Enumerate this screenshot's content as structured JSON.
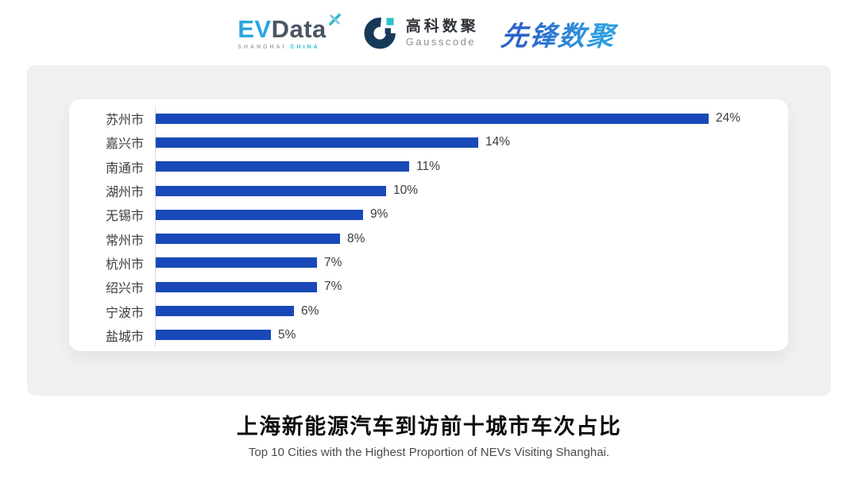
{
  "header": {
    "evdata_logo": {
      "ev": "EV",
      "data": "Data",
      "tagline_left": "SHANGHAI",
      "tagline_right": "CHINA"
    },
    "gausscode_logo": {
      "name_cn": "高科数聚",
      "name_en": "Gausscode"
    },
    "pioneer_logo": {
      "text": "先锋数聚"
    }
  },
  "chart_data": {
    "type": "bar",
    "orientation": "horizontal",
    "title": "上海新能源汽车到访前十城市车次占比",
    "subtitle": "Top 10 Cities with the Highest Proportion of  NEVs Visiting Shanghai.",
    "categories": [
      "苏州市",
      "嘉兴市",
      "南通市",
      "湖州市",
      "无锡市",
      "常州市",
      "杭州市",
      "绍兴市",
      "宁波市",
      "盐城市"
    ],
    "values": [
      24,
      14,
      11,
      10,
      9,
      8,
      7,
      7,
      6,
      5
    ],
    "value_labels": [
      "24%",
      "14%",
      "11%",
      "10%",
      "9%",
      "8%",
      "7%",
      "7%",
      "6%",
      "5%"
    ],
    "xlim": [
      0,
      24
    ],
    "grid": false,
    "legend": "none",
    "bar_color": "#1949b8",
    "axis_line_color": "#dbdbdb",
    "label_color": "#3c3c3c"
  },
  "colors": {
    "page_bg": "#ffffff",
    "panel_bg": "#f0f0f1",
    "card_bg": "#ffffff",
    "accent_blue": "#1949b8",
    "evdata_blue": "#2aa7dd",
    "evdata_dark": "#4a5662",
    "tagline_gray": "#a3a8ae",
    "tagline_cyan": "#29c3dc",
    "gauss_navy": "#16395a",
    "gauss_teal": "#2fbfca",
    "pioneer_blue_start": "#2a63c9",
    "pioneer_blue_end": "#2f9de0"
  }
}
